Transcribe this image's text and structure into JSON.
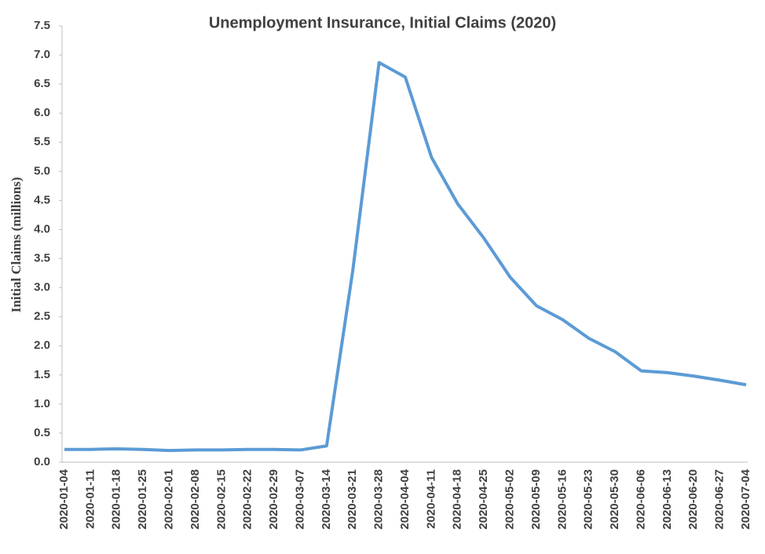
{
  "chart_data": {
    "type": "line",
    "title": "Unemployment Insurance, Initial Claims (2020)",
    "y_label": "Initial Claims (millions)",
    "categories": [
      "2020-01-04",
      "2020-01-11",
      "2020-01-18",
      "2020-01-25",
      "2020-02-01",
      "2020-02-08",
      "2020-02-15",
      "2020-02-22",
      "2020-02-29",
      "2020-03-07",
      "2020-03-14",
      "2020-03-21",
      "2020-03-28",
      "2020-04-04",
      "2020-04-11",
      "2020-04-18",
      "2020-04-25",
      "2020-05-02",
      "2020-05-09",
      "2020-05-16",
      "2020-05-23",
      "2020-05-30",
      "2020-06-06",
      "2020-06-13",
      "2020-06-20",
      "2020-06-27",
      "2020-07-04"
    ],
    "values": [
      0.22,
      0.22,
      0.23,
      0.22,
      0.2,
      0.21,
      0.21,
      0.22,
      0.22,
      0.21,
      0.28,
      3.3,
      6.87,
      6.62,
      5.24,
      4.44,
      3.85,
      3.18,
      2.69,
      2.45,
      2.13,
      1.9,
      1.57,
      1.54,
      1.48,
      1.41,
      1.33
    ],
    "color": "#5b9bd5",
    "ylim": [
      0,
      7.5
    ],
    "yticks": [
      {
        "value": 0,
        "label": "0.0"
      },
      0.5,
      {
        "value": 1,
        "label": "1.0"
      },
      1.5,
      {
        "value": 2,
        "label": "2.0"
      },
      2.5,
      {
        "value": 3,
        "label": "3.0"
      },
      3.5,
      {
        "value": 4,
        "label": "4.0"
      },
      4.5,
      {
        "value": 5,
        "label": "5.0"
      },
      5.5,
      {
        "value": 6,
        "label": "6.0"
      },
      6.5,
      {
        "value": 7,
        "label": "7.0"
      },
      7.5
    ],
    "grid": false
  }
}
